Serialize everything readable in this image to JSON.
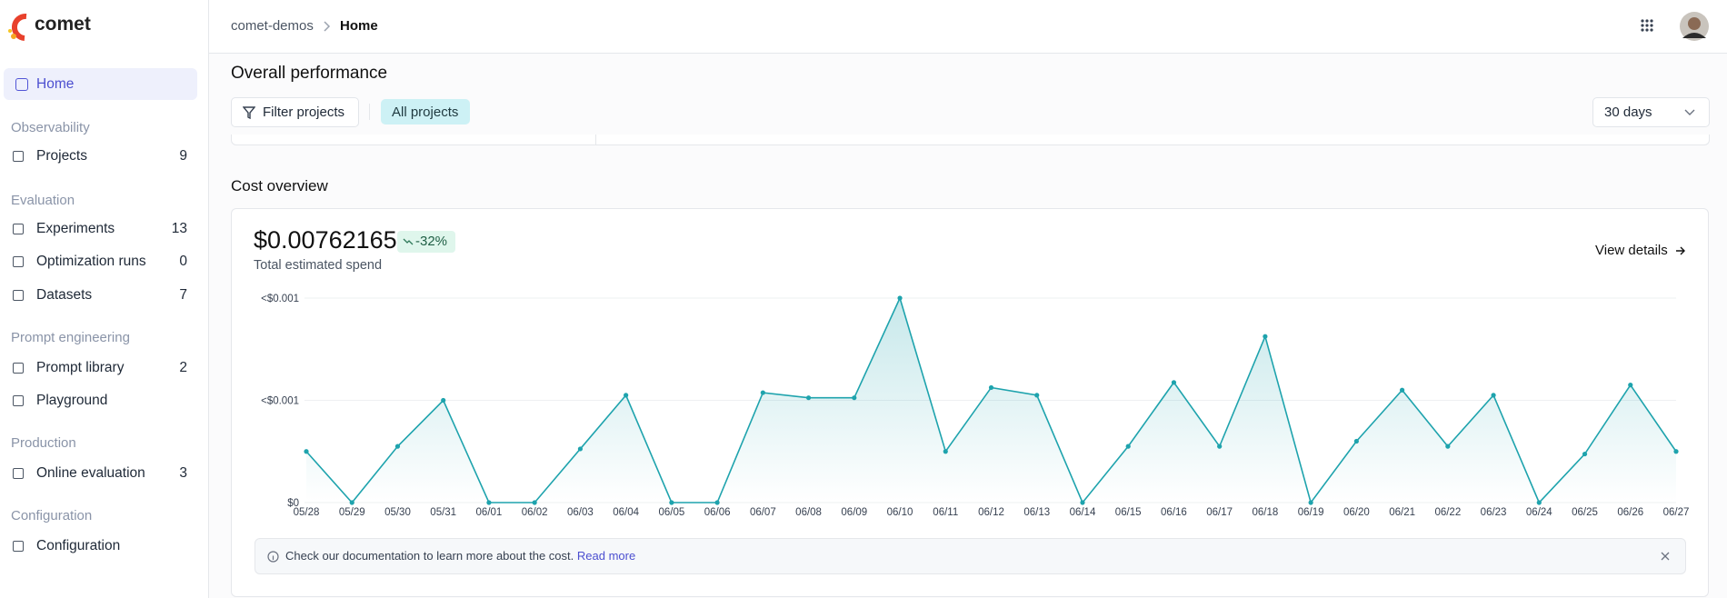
{
  "app": {
    "logo": "comet"
  },
  "sidebar": {
    "home": "Home",
    "sections": [
      {
        "title": "Observability",
        "items": [
          {
            "label": "Projects",
            "count": 9
          }
        ]
      },
      {
        "title": "Evaluation",
        "items": [
          {
            "label": "Experiments",
            "count": 13
          },
          {
            "label": "Optimization runs",
            "count": 0
          },
          {
            "label": "Datasets",
            "count": 7
          }
        ]
      },
      {
        "title": "Prompt engineering",
        "items": [
          {
            "label": "Prompt library",
            "count": 2
          },
          {
            "label": "Playground"
          }
        ]
      },
      {
        "title": "Production",
        "items": [
          {
            "label": "Online evaluation",
            "count": 3
          }
        ]
      },
      {
        "title": "Configuration",
        "items": [
          {
            "label": "Configuration"
          }
        ]
      }
    ]
  },
  "header": {
    "breadcrumb": [
      "comet-demos",
      "Home"
    ]
  },
  "page": {
    "title": "Overall performance",
    "filter_button": "Filter projects",
    "chip": "All projects",
    "range": "30 days"
  },
  "cost": {
    "total": "$0.00762165",
    "change": "-32%",
    "total_label": "Total estimated spend",
    "details_link": "View details",
    "note": "Check our documentation to learn more about the cost.",
    "note_link": "Read more"
  },
  "chart_data": {
    "type": "area",
    "title": "Cost overview",
    "color": "#1ea3ad",
    "categories": [
      "05/28",
      "05/29",
      "05/30",
      "05/31",
      "06/01",
      "06/02",
      "06/03",
      "06/04",
      "06/05",
      "06/06",
      "06/07",
      "06/08",
      "06/09",
      "06/10",
      "06/11",
      "06/12",
      "06/13",
      "06/14",
      "06/15",
      "06/16",
      "06/17",
      "06/18",
      "06/19",
      "06/20",
      "06/21",
      "06/22",
      "06/23",
      "06/24",
      "06/25",
      "06/26",
      "06/27"
    ],
    "values": [
      0.0002,
      0,
      0.00022,
      0.0004,
      0,
      0,
      0.00021,
      0.00042,
      0,
      0,
      0.00043,
      0.00041,
      0.00041,
      0.0008,
      0.0002,
      0.00045,
      0.00042,
      0,
      0.00022,
      0.00047,
      0.00022,
      0.00065,
      0,
      0.00024,
      0.00044,
      0.00022,
      0.00042,
      0,
      0.00019,
      0.00046,
      0.0002
    ],
    "ylim": [
      0,
      0.0008
    ],
    "yticks": [
      {
        "value": 0,
        "label": "$0"
      },
      {
        "value": 0.0004,
        "label": "<$0.001"
      },
      {
        "value": 0.0008,
        "label": "<$0.001"
      }
    ],
    "grid": true
  }
}
